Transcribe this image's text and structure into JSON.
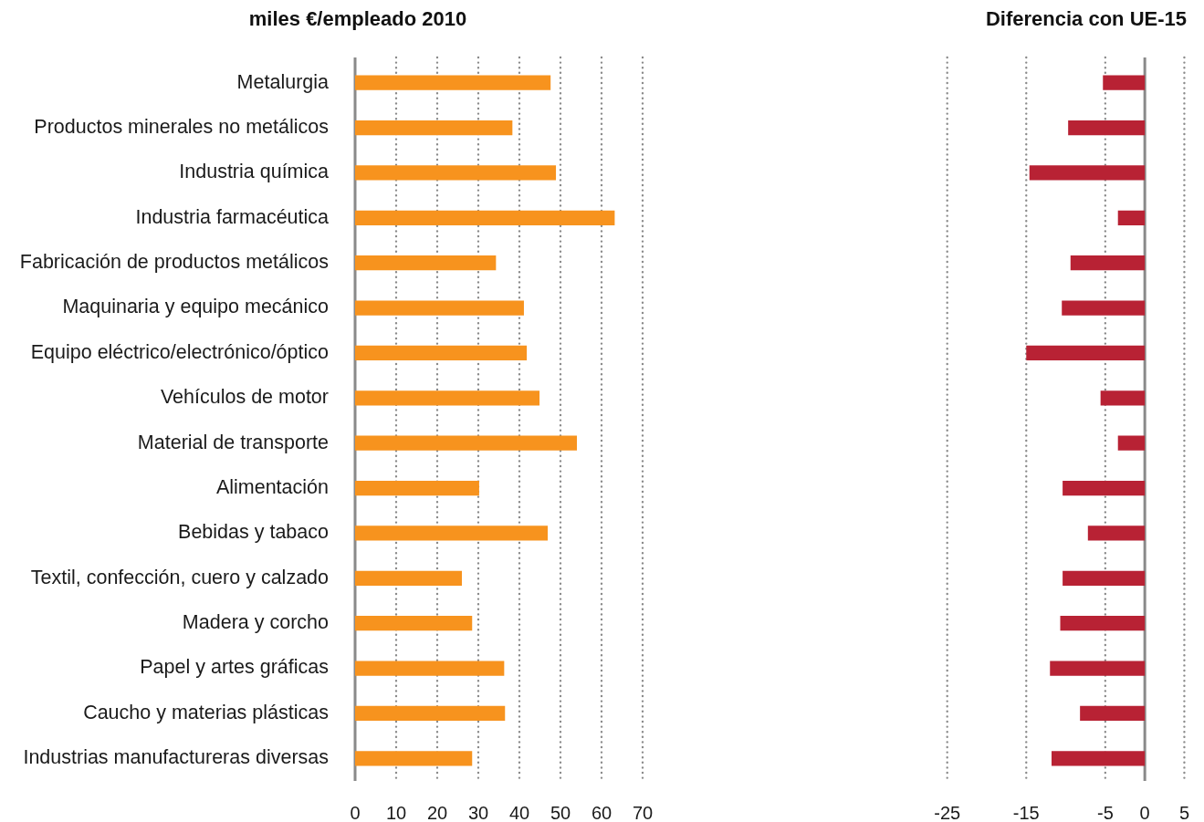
{
  "chart_data": [
    {
      "type": "bar",
      "orientation": "horizontal",
      "title": "miles €/empleado 2010",
      "categories": [
        "Metalurgia",
        "Productos minerales no metálicos",
        "Industria química",
        "Industria farmacéutica",
        "Fabricación de productos metálicos",
        "Maquinaria y equipo mecánico",
        "Equipo eléctrico/electrónico/óptico",
        "Vehículos de motor",
        "Material de transporte",
        "Alimentación",
        "Bebidas y tabaco",
        "Textil, confección, cuero y calzado",
        "Madera y corcho",
        "Papel y artes gráficas",
        "Caucho y materias plásticas",
        "Industrias manufactureras diversas"
      ],
      "values": [
        47.6,
        38.3,
        48.9,
        63.2,
        34.3,
        41.1,
        41.8,
        44.9,
        54.0,
        30.2,
        46.9,
        26.0,
        28.5,
        36.3,
        36.5,
        28.5
      ],
      "color": "#f7931e",
      "xlim": [
        0,
        70
      ],
      "xticks": [
        0,
        10,
        20,
        30,
        40,
        50,
        60,
        70
      ],
      "grid": "x"
    },
    {
      "type": "bar",
      "orientation": "horizontal",
      "title": "Diferencia con UE-15",
      "categories": [
        null,
        null,
        null,
        null,
        null,
        null,
        null,
        null,
        null,
        null,
        null,
        null,
        null,
        null,
        null,
        null
      ],
      "values": [
        -5.3,
        -9.7,
        -14.6,
        -3.4,
        -9.4,
        -10.5,
        -15.0,
        -5.6,
        -3.4,
        -10.4,
        -7.2,
        -10.4,
        -10.7,
        -12.0,
        -8.2,
        -11.8
      ],
      "color": "#b82234",
      "xlim": [
        -25,
        5
      ],
      "xticks": [
        -25,
        -15,
        -5,
        0,
        5
      ],
      "grid": "x",
      "tick_labels": "x"
    }
  ]
}
